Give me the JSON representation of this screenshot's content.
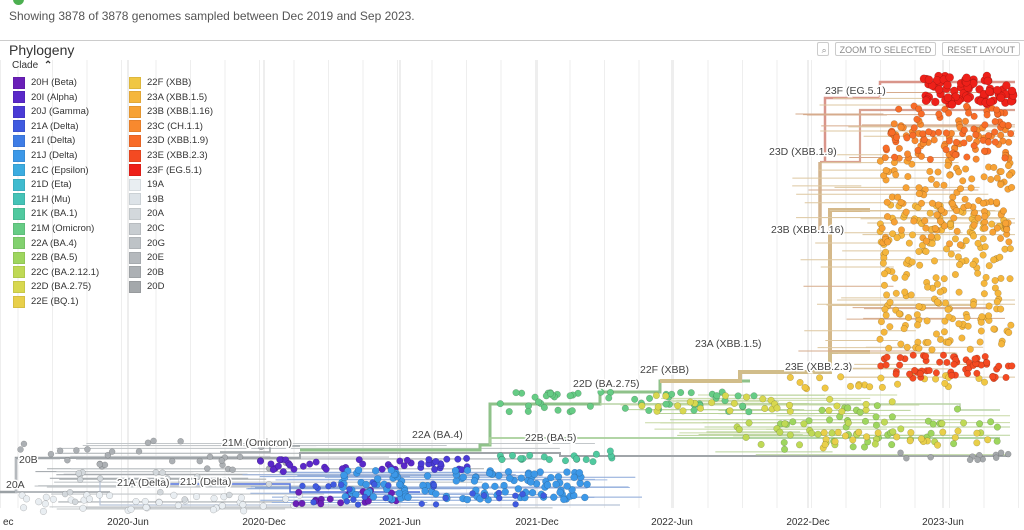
{
  "info": {
    "text": "Showing 3878 of 3878 genomes sampled between Dec 2019 and Sep 2023."
  },
  "panel": {
    "title": "Phylogeny"
  },
  "toolbar": {
    "search_icon": "search-icon",
    "zoom_label": "ZOOM TO SELECTED",
    "reset_label": "RESET LAYOUT"
  },
  "legend": {
    "header": "Clade",
    "chevron": "⌃",
    "items": [
      {
        "label": "20H (Beta)",
        "color": "#6a1fb8"
      },
      {
        "label": "20I (Alpha)",
        "color": "#5a28c9"
      },
      {
        "label": "20J (Gamma)",
        "color": "#4a3bd6"
      },
      {
        "label": "21A (Delta)",
        "color": "#3f5ae0"
      },
      {
        "label": "21I (Delta)",
        "color": "#3f7de6"
      },
      {
        "label": "21J (Delta)",
        "color": "#3c98e8"
      },
      {
        "label": "21C (Epsilon)",
        "color": "#3cace0"
      },
      {
        "label": "21D (Eta)",
        "color": "#3fbbcf"
      },
      {
        "label": "21H (Mu)",
        "color": "#45c3b7"
      },
      {
        "label": "21K (BA.1)",
        "color": "#50c99f"
      },
      {
        "label": "21M (Omicron)",
        "color": "#66cc85"
      },
      {
        "label": "22A (BA.4)",
        "color": "#82d16f"
      },
      {
        "label": "22B (BA.5)",
        "color": "#9ed65e"
      },
      {
        "label": "22C (BA.2.12.1)",
        "color": "#bfd955"
      },
      {
        "label": "22D (BA.2.75)",
        "color": "#d8d84f"
      },
      {
        "label": "22E (BQ.1)",
        "color": "#e8cf4a"
      },
      {
        "label": "22F (XBB)",
        "color": "#f0c743"
      },
      {
        "label": "23A (XBB.1.5)",
        "color": "#f5b63c"
      },
      {
        "label": "23B (XBB.1.16)",
        "color": "#f7a235"
      },
      {
        "label": "23C (CH.1.1)",
        "color": "#f8892e"
      },
      {
        "label": "23D (XBB.1.9)",
        "color": "#f86c28"
      },
      {
        "label": "23E (XBB.2.3)",
        "color": "#f44a22"
      },
      {
        "label": "23F (EG.5.1)",
        "color": "#ee2019"
      },
      {
        "label": "19A",
        "color": "#e9eef2"
      },
      {
        "label": "19B",
        "color": "#dde3e8"
      },
      {
        "label": "20A",
        "color": "#d3d8dc"
      },
      {
        "label": "20C",
        "color": "#c8cdd1"
      },
      {
        "label": "20G",
        "color": "#bec3c7"
      },
      {
        "label": "20E",
        "color": "#b5b9bd"
      },
      {
        "label": "20B",
        "color": "#acb0b4"
      },
      {
        "label": "20D",
        "color": "#a4a8ab"
      }
    ]
  },
  "axis": {
    "labels": [
      "ec",
      "2020-Jun",
      "2020-Dec",
      "2021-Jun",
      "2021-Dec",
      "2022-Jun",
      "2022-Dec",
      "2023-Jun"
    ]
  },
  "tree_labels": [
    "23F (EG.5.1)",
    "23D (XBB.1.9)",
    "23B (XBB.1.16)",
    "23A (XBB.1.5)",
    "23E (XBB.2.3)",
    "22F (XBB)",
    "22D (BA.2.75)",
    "22A (BA.4)",
    "22B (BA.5)",
    "21M (Omicron)",
    "21J (Delta)",
    "21A (Delta)",
    "20B",
    "20A"
  ]
}
